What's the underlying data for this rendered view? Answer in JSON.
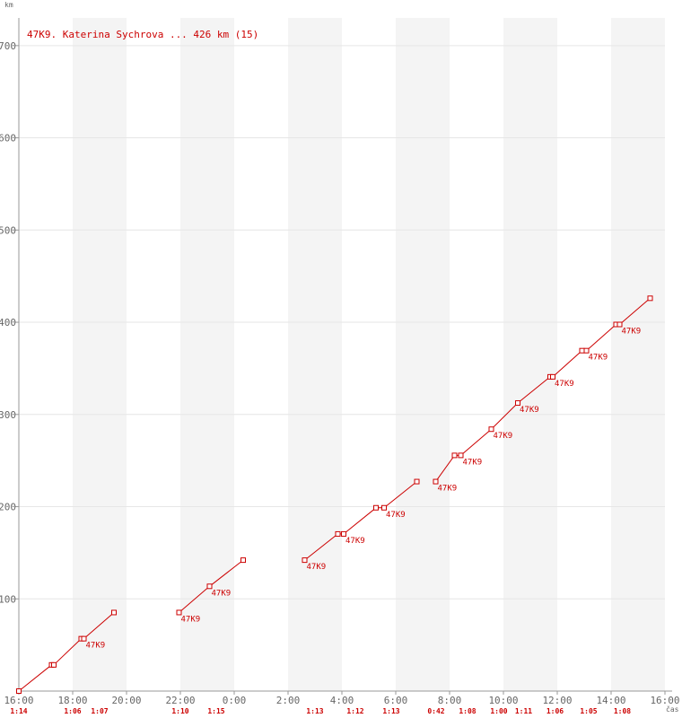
{
  "chart_data": {
    "type": "line",
    "title": "47K9. Katerina Sychrova ... 426 km (15)",
    "ylabel": "km",
    "xlabel": "čas",
    "ylim": [
      0,
      730
    ],
    "yticks": [
      100,
      200,
      300,
      400,
      500,
      600,
      700
    ],
    "x_start": "16:00",
    "x_end": "16:00 (+1 day)",
    "xticks": [
      "16:00",
      "18:00",
      "20:00",
      "22:00",
      "0:00",
      "2:00",
      "4:00",
      "6:00",
      "8:00",
      "10:00",
      "12:00",
      "14:00",
      "16:00"
    ],
    "shaded_bands": [
      [
        "18:00",
        "20:00"
      ],
      [
        "22:00",
        "0:00"
      ],
      [
        "2:00",
        "4:00"
      ],
      [
        "6:00",
        "8:00"
      ],
      [
        "10:00",
        "12:00"
      ],
      [
        "14:00",
        "16:00"
      ]
    ],
    "grid": true,
    "colors": {
      "line": "#cc0000",
      "band": "#f4f4f4",
      "grid": "#e6e6e6",
      "axis": "#999999"
    },
    "series": [
      {
        "name": "47K9",
        "segments": [
          [
            [
              "16:00",
              0
            ],
            [
              "17:13",
              28.4
            ],
            [
              "17:18",
              28.4
            ],
            [
              "18:19",
              56.8
            ],
            [
              "18:25",
              56.8
            ],
            [
              "19:32",
              85.2
            ]
          ],
          [
            [
              "21:57",
              85.2
            ],
            [
              "23:05",
              113.6
            ],
            [
              "0:20",
              142
            ]
          ],
          [
            [
              "2:37",
              142
            ],
            [
              "3:51",
              170.4
            ],
            [
              "4:04",
              170.4
            ],
            [
              "5:16",
              198.8
            ],
            [
              "5:34",
              198.8
            ],
            [
              "6:47",
              227.2
            ]
          ],
          [
            [
              "7:29",
              227.2
            ],
            [
              "8:11",
              255.6
            ],
            [
              "8:25",
              255.6
            ],
            [
              "9:33",
              284
            ],
            [
              "10:32",
              312.4
            ],
            [
              "11:44",
              340.8
            ],
            [
              "11:50",
              340.8
            ],
            [
              "12:55",
              369.2
            ],
            [
              "13:05",
              369.2
            ],
            [
              "14:11",
              397.6
            ],
            [
              "14:19",
              397.6
            ],
            [
              "15:27",
              426
            ]
          ]
        ],
        "point_labels": [
          [
            "18:25",
            56.8,
            "47K9"
          ],
          [
            "21:57",
            85.2,
            "47K9"
          ],
          [
            "23:05",
            113.6,
            "47K9"
          ],
          [
            "2:37",
            142,
            "47K9"
          ],
          [
            "4:04",
            170.4,
            "47K9"
          ],
          [
            "5:34",
            198.8,
            "47K9"
          ],
          [
            "7:29",
            227.2,
            "47K9"
          ],
          [
            "8:25",
            255.6,
            "47K9"
          ],
          [
            "9:33",
            284,
            "47K9"
          ],
          [
            "10:32",
            312.4,
            "47K9"
          ],
          [
            "11:50",
            340.8,
            "47K9"
          ],
          [
            "13:05",
            369.2,
            "47K9"
          ],
          [
            "14:19",
            397.6,
            "47K9"
          ]
        ]
      }
    ],
    "lap_times": [
      [
        "16:00",
        "1:14"
      ],
      [
        "18:00",
        "1:06"
      ],
      [
        "19:00",
        "1:07"
      ],
      [
        "22:00",
        "1:10"
      ],
      [
        "23:20",
        "1:15"
      ],
      [
        "3:00",
        "1:13"
      ],
      [
        "4:30",
        "1:12"
      ],
      [
        "5:50",
        "1:13"
      ],
      [
        "7:30",
        "0:42"
      ],
      [
        "8:40",
        "1:08"
      ],
      [
        "9:50",
        "1:00"
      ],
      [
        "10:45",
        "1:11"
      ],
      [
        "11:55",
        "1:06"
      ],
      [
        "13:10",
        "1:05"
      ],
      [
        "14:25",
        "1:08"
      ]
    ]
  }
}
